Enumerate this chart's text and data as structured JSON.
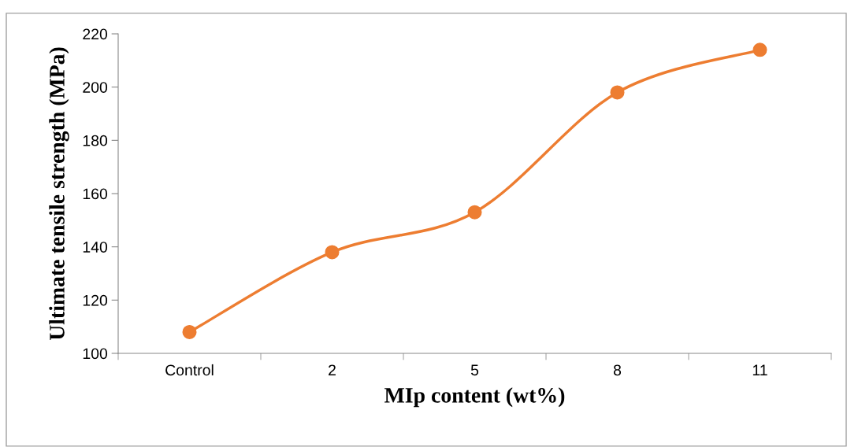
{
  "chart_data": {
    "type": "line",
    "xlabel": "MIp content (wt%)",
    "ylabel": "Ultimate tensile strength (MPa)",
    "categories": [
      "Control",
      "2",
      "5",
      "8",
      "11"
    ],
    "series": [
      {
        "color": "#ed7d31",
        "values": [
          108,
          138,
          153,
          198,
          214
        ]
      }
    ],
    "ylim": [
      100,
      220
    ],
    "yticks": [
      100,
      120,
      140,
      160,
      180,
      200,
      220
    ],
    "grid": false,
    "legend": false,
    "marker": "circle",
    "line_style": "solid"
  }
}
